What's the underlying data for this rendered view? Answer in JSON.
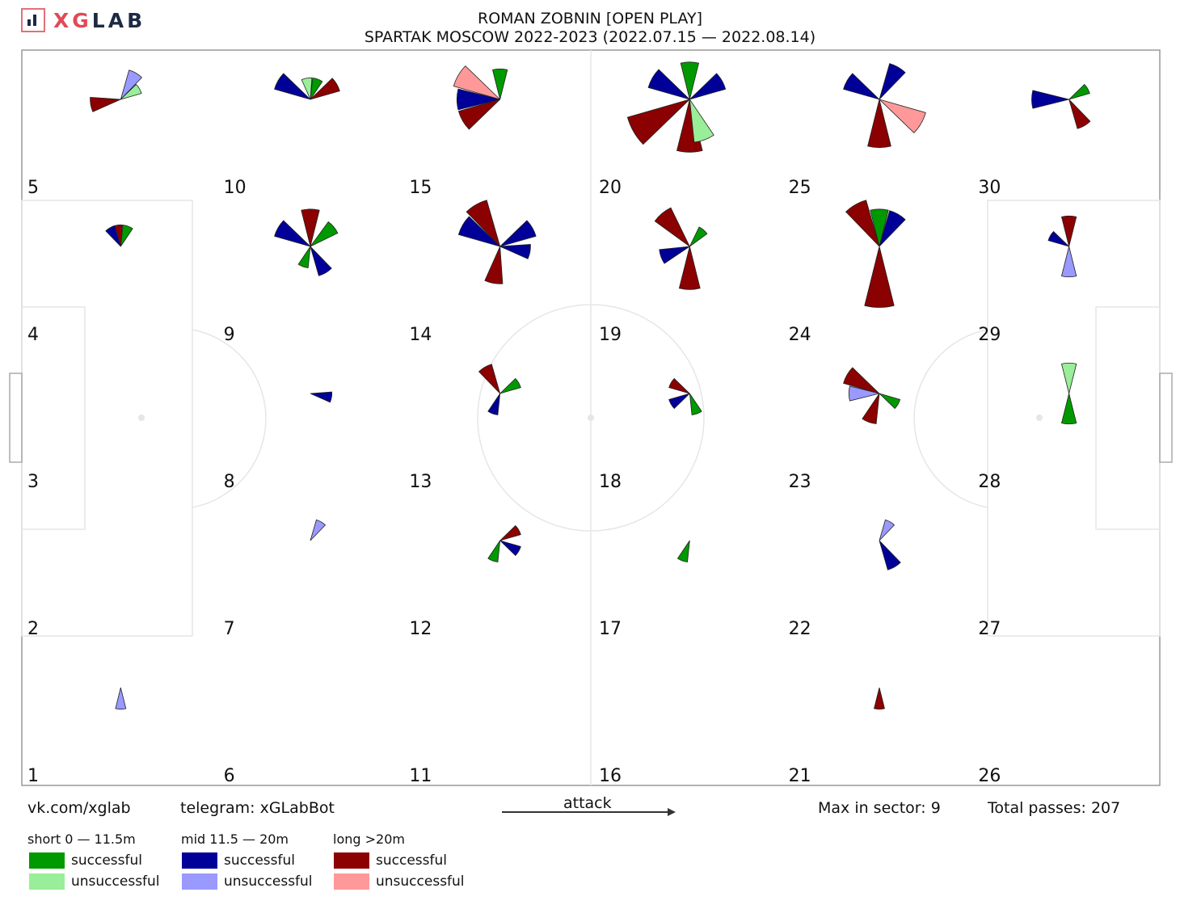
{
  "logo": {
    "text_a": "XG",
    "text_b": "LAB"
  },
  "header": {
    "title_line1": "ROMAN ZOBNIN [OPEN PLAY]",
    "title_line2": "SPARTAK MOSCOW 2022-2023 (2022.07.15 — 2022.08.14)"
  },
  "footer": {
    "vk": "vk.com/xglab",
    "telegram": "telegram: xGLabBot",
    "attack": "attack",
    "max_sector": "Max in sector: 9",
    "total": "Total passes: 207"
  },
  "legend": {
    "short_title": "short 0 — 11.5m",
    "mid_title": "mid 11.5 — 20m",
    "long_title": "long >20m",
    "successful": "successful",
    "unsuccessful": "unsuccessful"
  },
  "colors": {
    "short_success": "#009900",
    "short_fail": "#99ee99",
    "mid_success": "#000099",
    "mid_fail": "#9999ff",
    "long_success": "#8b0000",
    "long_fail": "#ff9999"
  },
  "chart_data": {
    "type": "pass-rose-grid",
    "max_in_sector": 9,
    "total_passes": 207,
    "categories": [
      "short successful",
      "short unsuccessful",
      "mid successful",
      "mid unsuccessful",
      "long successful",
      "long unsuccessful"
    ],
    "zones": [
      {
        "id": "1",
        "wedges": [
          {
            "dir": 180,
            "c": "mid_fail",
            "v": 1
          }
        ]
      },
      {
        "id": "2",
        "wedges": []
      },
      {
        "id": "3",
        "wedges": []
      },
      {
        "id": "4",
        "wedges": [
          {
            "dir": 350,
            "c": "long_success",
            "v": 1
          },
          {
            "dir": 20,
            "c": "short_success",
            "v": 1
          },
          {
            "dir": 330,
            "c": "mid_success",
            "v": 1
          }
        ]
      },
      {
        "id": "5",
        "wedges": [
          {
            "dir": 260,
            "c": "long_success",
            "v": 2
          },
          {
            "dir": 30,
            "c": "mid_fail",
            "v": 2
          },
          {
            "dir": 60,
            "c": "short_fail",
            "v": 1
          }
        ]
      },
      {
        "id": "6",
        "wedges": []
      },
      {
        "id": "7",
        "wedges": [
          {
            "dir": 30,
            "c": "mid_fail",
            "v": 1
          }
        ]
      },
      {
        "id": "8",
        "wedges": [
          {
            "dir": 100,
            "c": "mid_success",
            "v": 1
          }
        ]
      },
      {
        "id": "9",
        "wedges": [
          {
            "dir": 0,
            "c": "long_success",
            "v": 3
          },
          {
            "dir": 300,
            "c": "mid_success",
            "v": 3
          },
          {
            "dir": 50,
            "c": "short_success",
            "v": 2
          },
          {
            "dir": 150,
            "c": "mid_success",
            "v": 2
          },
          {
            "dir": 200,
            "c": "short_success",
            "v": 1
          }
        ]
      },
      {
        "id": "10",
        "wedges": [
          {
            "dir": 300,
            "c": "mid_success",
            "v": 3
          },
          {
            "dir": 60,
            "c": "long_success",
            "v": 2
          },
          {
            "dir": 20,
            "c": "short_success",
            "v": 1
          },
          {
            "dir": 350,
            "c": "short_fail",
            "v": 1
          }
        ]
      },
      {
        "id": "11",
        "wedges": []
      },
      {
        "id": "12",
        "wedges": [
          {
            "dir": 60,
            "c": "long_success",
            "v": 1
          },
          {
            "dir": 120,
            "c": "mid_success",
            "v": 1
          },
          {
            "dir": 200,
            "c": "short_success",
            "v": 1
          }
        ]
      },
      {
        "id": "13",
        "wedges": [
          {
            "dir": 330,
            "c": "long_success",
            "v": 2
          },
          {
            "dir": 60,
            "c": "short_success",
            "v": 1
          },
          {
            "dir": 200,
            "c": "mid_success",
            "v": 1
          }
        ]
      },
      {
        "id": "14",
        "wedges": [
          {
            "dir": 330,
            "c": "long_success",
            "v": 5
          },
          {
            "dir": 300,
            "c": "mid_success",
            "v": 4
          },
          {
            "dir": 60,
            "c": "mid_success",
            "v": 3
          },
          {
            "dir": 190,
            "c": "long_success",
            "v": 3
          },
          {
            "dir": 100,
            "c": "mid_success",
            "v": 2
          }
        ]
      },
      {
        "id": "15",
        "wedges": [
          {
            "dir": 300,
            "c": "long_fail",
            "v": 5
          },
          {
            "dir": 270,
            "c": "mid_success",
            "v": 4
          },
          {
            "dir": 240,
            "c": "long_success",
            "v": 4
          },
          {
            "dir": 0,
            "c": "short_success",
            "v": 2
          }
        ]
      },
      {
        "id": "16",
        "wedges": []
      },
      {
        "id": "17",
        "wedges": [
          {
            "dir": 200,
            "c": "short_success",
            "v": 1
          }
        ]
      },
      {
        "id": "18",
        "wedges": [
          {
            "dir": 300,
            "c": "long_success",
            "v": 1
          },
          {
            "dir": 240,
            "c": "mid_success",
            "v": 1
          },
          {
            "dir": 160,
            "c": "short_success",
            "v": 1
          }
        ]
      },
      {
        "id": "19",
        "wedges": [
          {
            "dir": 320,
            "c": "long_success",
            "v": 4
          },
          {
            "dir": 180,
            "c": "long_success",
            "v": 4
          },
          {
            "dir": 250,
            "c": "mid_success",
            "v": 2
          },
          {
            "dir": 40,
            "c": "short_success",
            "v": 1
          }
        ]
      },
      {
        "id": "20",
        "wedges": [
          {
            "dir": 240,
            "c": "long_success",
            "v": 9
          },
          {
            "dir": 180,
            "c": "long_success",
            "v": 6
          },
          {
            "dir": 160,
            "c": "short_fail",
            "v": 4
          },
          {
            "dir": 300,
            "c": "mid_success",
            "v": 4
          },
          {
            "dir": 60,
            "c": "mid_success",
            "v": 3
          },
          {
            "dir": 0,
            "c": "short_success",
            "v": 3
          }
        ]
      },
      {
        "id": "21",
        "wedges": [
          {
            "dir": 180,
            "c": "long_success",
            "v": 1
          }
        ]
      },
      {
        "id": "22",
        "wedges": [
          {
            "dir": 150,
            "c": "mid_success",
            "v": 2
          },
          {
            "dir": 30,
            "c": "mid_fail",
            "v": 1
          }
        ]
      },
      {
        "id": "23",
        "wedges": [
          {
            "dir": 300,
            "c": "long_success",
            "v": 3
          },
          {
            "dir": 270,
            "c": "mid_fail",
            "v": 2
          },
          {
            "dir": 200,
            "c": "long_success",
            "v": 2
          },
          {
            "dir": 120,
            "c": "short_success",
            "v": 1
          }
        ]
      },
      {
        "id": "24",
        "wedges": [
          {
            "dir": 180,
            "c": "long_success",
            "v": 8
          },
          {
            "dir": 330,
            "c": "long_success",
            "v": 5
          },
          {
            "dir": 30,
            "c": "mid_success",
            "v": 3
          },
          {
            "dir": 0,
            "c": "short_success",
            "v": 3
          }
        ]
      },
      {
        "id": "25",
        "wedges": [
          {
            "dir": 180,
            "c": "long_success",
            "v": 5
          },
          {
            "dir": 120,
            "c": "long_fail",
            "v": 5
          },
          {
            "dir": 300,
            "c": "mid_success",
            "v": 3
          },
          {
            "dir": 30,
            "c": "mid_success",
            "v": 3
          }
        ]
      },
      {
        "id": "26",
        "wedges": []
      },
      {
        "id": "27",
        "wedges": []
      },
      {
        "id": "28",
        "wedges": [
          {
            "dir": 0,
            "c": "short_fail",
            "v": 2
          },
          {
            "dir": 180,
            "c": "short_success",
            "v": 2
          }
        ]
      },
      {
        "id": "29",
        "wedges": [
          {
            "dir": 0,
            "c": "long_success",
            "v": 2
          },
          {
            "dir": 180,
            "c": "mid_fail",
            "v": 2
          },
          {
            "dir": 300,
            "c": "mid_success",
            "v": 1
          }
        ]
      },
      {
        "id": "30",
        "wedges": [
          {
            "dir": 270,
            "c": "mid_success",
            "v": 3
          },
          {
            "dir": 150,
            "c": "long_success",
            "v": 2
          },
          {
            "dir": 60,
            "c": "short_success",
            "v": 1
          }
        ]
      }
    ]
  }
}
